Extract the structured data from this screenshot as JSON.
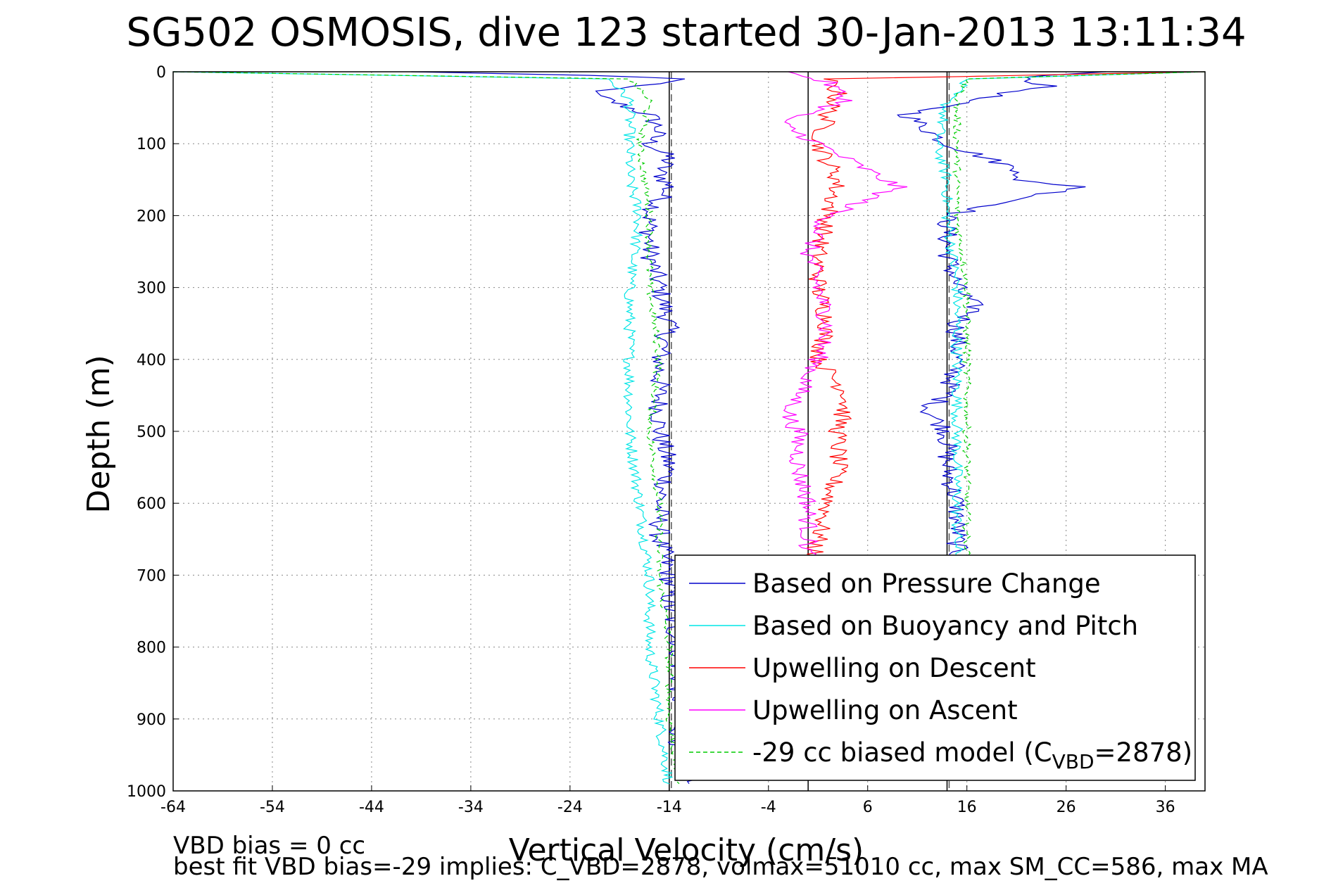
{
  "chart_data": {
    "type": "line",
    "title": "SG502 OSMOSIS, dive 123 started 30-Jan-2013 13:11:34",
    "xlabel": "Vertical Velocity (cm/s)",
    "ylabel": "Depth (m)",
    "xlim": [
      -64,
      40
    ],
    "ylim": [
      1000,
      0
    ],
    "y_reversed": true,
    "grid": true,
    "legend_position": "bottom-right",
    "xticks": [
      -64,
      -54,
      -44,
      -34,
      -24,
      -14,
      -4,
      6,
      16,
      26,
      36
    ],
    "yticks": [
      0,
      100,
      200,
      300,
      400,
      500,
      600,
      700,
      800,
      900,
      1000
    ],
    "reference_lines": [
      {
        "x": -14,
        "style": "solid",
        "color": "#000000"
      },
      {
        "x": -14,
        "style": "dashed",
        "color": "#555555"
      },
      {
        "x": 0,
        "style": "solid",
        "color": "#000000"
      },
      {
        "x": 14,
        "style": "solid",
        "color": "#000000"
      },
      {
        "x": 14,
        "style": "dashed",
        "color": "#555555"
      }
    ],
    "series": [
      {
        "name": "Based on Pressure Change",
        "color": "#0000cc",
        "segments": [
          {
            "depth": [
              0,
              5,
              10,
              20,
              30,
              40,
              60,
              80,
              100,
              120,
              140,
              160,
              180,
              200,
              250,
              300,
              350,
              400,
              450,
              500,
              550,
              600,
              650,
              700,
              750,
              800,
              850,
              900,
              950,
              990
            ],
            "velocity": [
              -40,
              -22,
              -12,
              -18,
              -22,
              -20,
              -16,
              -15,
              -16,
              -14,
              -15,
              -14,
              -15,
              -16,
              -16,
              -15,
              -14,
              -15,
              -15,
              -15,
              -14,
              -15,
              -15,
              -14,
              -14,
              -13,
              -13,
              -13,
              -13,
              -12
            ]
          },
          {
            "depth": [
              0,
              5,
              10,
              20,
              30,
              40,
              60,
              80,
              100,
              120,
              140,
              150,
              160,
              170,
              200,
              250,
              300,
              330,
              350,
              400,
              450,
              470,
              500,
              550,
              600,
              650,
              700
            ],
            "velocity": [
              30,
              24,
              22,
              24,
              20,
              16,
              10,
              12,
              14,
              18,
              22,
              20,
              28,
              24,
              14,
              14,
              15,
              17,
              15,
              15,
              14,
              12,
              14,
              14,
              15,
              15,
              15
            ]
          }
        ]
      },
      {
        "name": "Based on Buoyancy and Pitch",
        "color": "#00e5e5",
        "segments": [
          {
            "depth": [
              0,
              10,
              40,
              100,
              150,
              200,
              300,
              400,
              500,
              600,
              700,
              800,
              900,
              990
            ],
            "velocity": [
              -64,
              -20,
              -18,
              -18,
              -18,
              -17,
              -18,
              -18,
              -18,
              -17,
              -16,
              -16,
              -15,
              -14
            ]
          },
          {
            "depth": [
              0,
              10,
              40,
              100,
              150,
              200,
              300,
              400,
              500,
              600,
              700
            ],
            "velocity": [
              40,
              16,
              14,
              13,
              14,
              14,
              15,
              15,
              15,
              15,
              15
            ]
          }
        ]
      },
      {
        "name": "Upwelling on Descent",
        "color": "#ff0000",
        "depth": [
          0,
          10,
          30,
          60,
          100,
          150,
          200,
          250,
          300,
          350,
          400,
          450,
          500,
          550,
          600,
          650,
          700
        ],
        "velocity": [
          40,
          2,
          3,
          2,
          1,
          3,
          2,
          1,
          1,
          2,
          1,
          4,
          3,
          3,
          2,
          1,
          0
        ]
      },
      {
        "name": "Upwelling on Ascent",
        "color": "#ff00ff",
        "depth": [
          0,
          15,
          40,
          70,
          100,
          130,
          160,
          200,
          250,
          300,
          350,
          400,
          450,
          480,
          500,
          550,
          600,
          650,
          700
        ],
        "velocity": [
          -2,
          2,
          4,
          -3,
          1,
          5,
          9,
          2,
          0,
          1,
          2,
          1,
          -1,
          -2,
          -1,
          -1,
          0,
          0,
          0
        ]
      },
      {
        "name": "-29 cc biased model (C",
        "name_sub": "VBD",
        "name_suffix": "=2878)",
        "color": "#00cc00",
        "style": "dashed",
        "segments": [
          {
            "depth": [
              0,
              10,
              40,
              100,
              200,
              300,
              400,
              500,
              600,
              700,
              800,
              900,
              990
            ],
            "velocity": [
              -64,
              -18,
              -16,
              -17,
              -16,
              -16,
              -15,
              -16,
              -15,
              -15,
              -14,
              -14,
              -13
            ]
          },
          {
            "depth": [
              0,
              10,
              40,
              100,
              200,
              300,
              400,
              500,
              600,
              700
            ],
            "velocity": [
              40,
              16,
              15,
              15,
              15,
              16,
              16,
              16,
              16,
              16
            ]
          }
        ]
      }
    ]
  },
  "annotations": {
    "vbd_bias": "VBD bias = 0 cc",
    "best_fit": "best fit VBD bias=-29 implies: C_VBD=2878, volmax=51010 cc, max SM_CC=586, max MA"
  }
}
